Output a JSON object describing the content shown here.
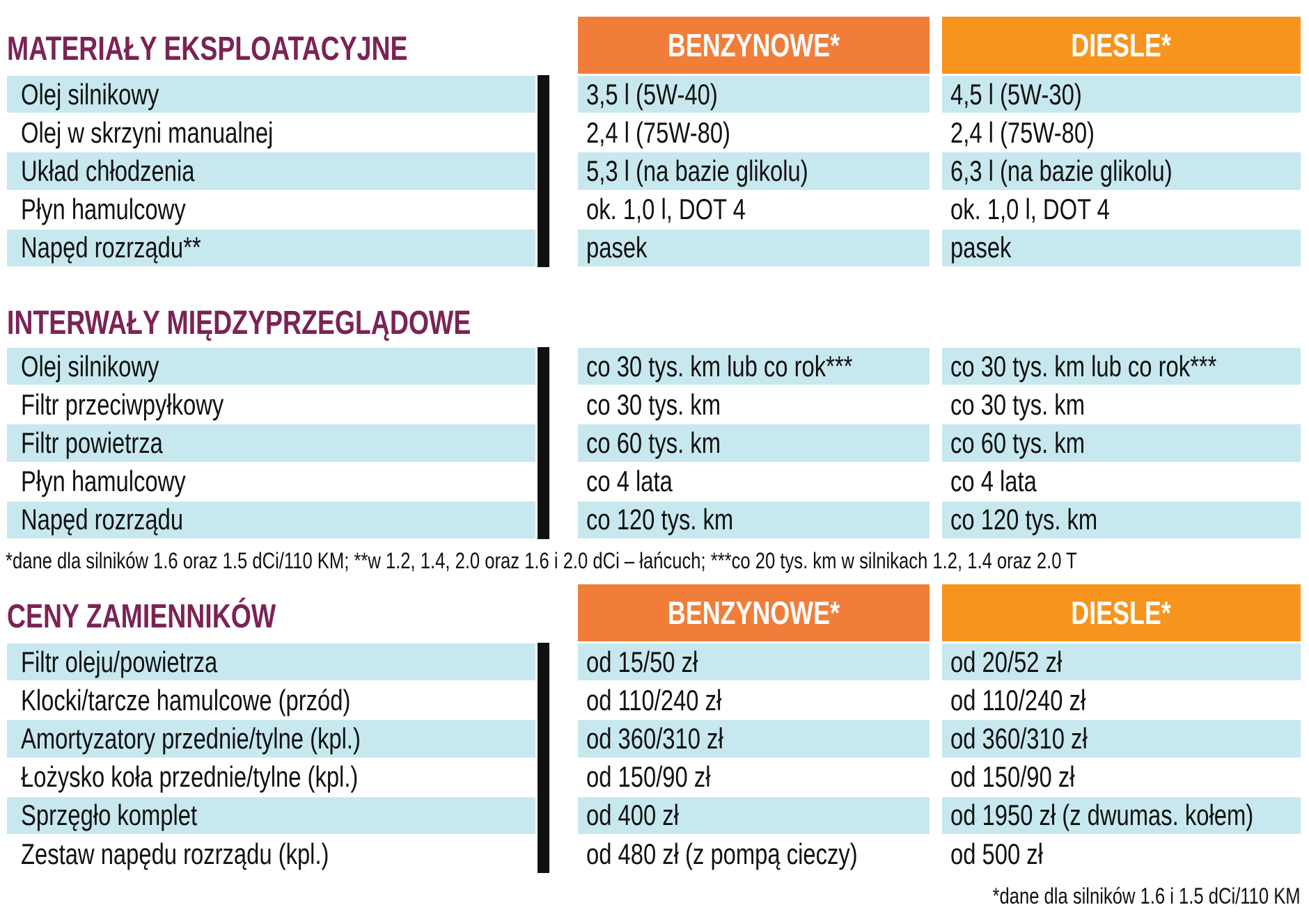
{
  "sections": [
    {
      "title": "MATERIAŁY EKSPLOATACYJNE",
      "columns": [
        "BENZYNOWE*",
        "DIESLE*"
      ],
      "rows": [
        [
          "Olej silnikowy",
          "3,5 l (5W-40)",
          "4,5 l (5W-30)"
        ],
        [
          "Olej w skrzyni manualnej",
          "2,4 l (75W-80)",
          "2,4 l (75W-80)"
        ],
        [
          "Układ chłodzenia",
          "5,3 l (na bazie glikolu)",
          "6,3 l (na bazie glikolu)"
        ],
        [
          "Płyn hamulcowy",
          "ok. 1,0 l, DOT 4",
          "ok. 1,0 l, DOT 4"
        ],
        [
          "Napęd rozrządu**",
          "pasek",
          "pasek"
        ]
      ]
    },
    {
      "title": "INTERWAŁY MIĘDZYPRZEGLĄDOWE",
      "rows": [
        [
          "Olej silnikowy",
          "co 30 tys. km lub co rok***",
          "co 30 tys. km lub co rok***"
        ],
        [
          "Filtr przeciwpyłkowy",
          "co 30 tys. km",
          "co 30 tys. km"
        ],
        [
          "Filtr powietrza",
          "co 60 tys. km",
          "co 60 tys. km"
        ],
        [
          "Płyn hamulcowy",
          "co 4 lata",
          "co 4 lata"
        ],
        [
          "Napęd rozrządu",
          "co 120 tys. km",
          "co 120 tys. km"
        ]
      ],
      "footnote": "*dane dla silników 1.6 oraz 1.5 dCi/110 KM; **w 1.2, 1.4, 2.0 oraz 1.6 i 2.0 dCi – łańcuch; ***co 20 tys. km w silnikach 1.2, 1.4 oraz 2.0 T"
    },
    {
      "title": "CENY ZAMIENNIKÓW",
      "columns": [
        "BENZYNOWE*",
        "DIESLE*"
      ],
      "rows": [
        [
          "Filtr oleju/powietrza",
          "od 15/50 zł",
          "od 20/52 zł"
        ],
        [
          "Klocki/tarcze hamulcowe (przód)",
          "od 110/240 zł",
          "od 110/240 zł"
        ],
        [
          "Amortyzatory przednie/tylne (kpl.)",
          "od 360/310 zł",
          "od 360/310 zł"
        ],
        [
          "Łożysko koła przednie/tylne (kpl.)",
          "od 150/90 zł",
          "od 150/90 zł"
        ],
        [
          "Sprzęgło komplet",
          "od 400 zł",
          "od 1950 zł (z dwumas. kołem)"
        ],
        [
          "Zestaw napędu rozrządu (kpl.)",
          "od 480 zł (z pompą cieczy)",
          "od 500 zł"
        ]
      ],
      "footnote": "*dane dla silników 1.6 i 1.5 dCi/110 KM"
    }
  ]
}
